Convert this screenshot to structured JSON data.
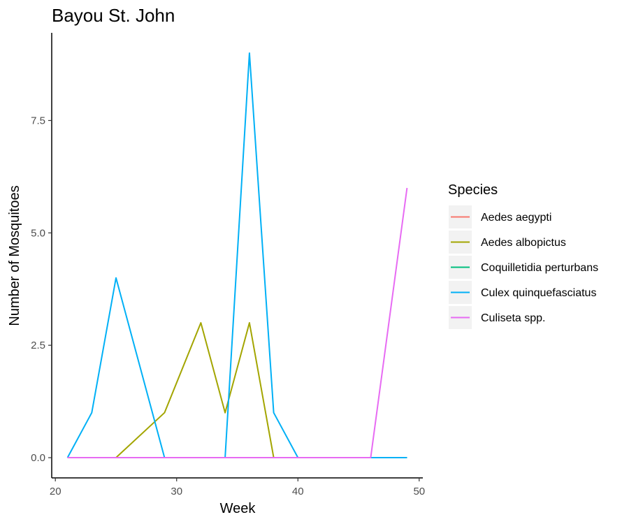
{
  "chart_data": {
    "type": "line",
    "title": "Bayou St. John",
    "xlabel": "Week",
    "ylabel": "Number of Mosquitoes",
    "xlim": [
      19.7,
      50.3
    ],
    "ylim": [
      -0.45,
      9.45
    ],
    "xticks": [
      20,
      30,
      40,
      50
    ],
    "xtick_labels": [
      "20",
      "30",
      "40",
      "50"
    ],
    "yticks": [
      0,
      2.5,
      5,
      7.5
    ],
    "ytick_labels": [
      "0.0",
      "2.5",
      "5.0",
      "7.5"
    ],
    "grid": false,
    "legend": {
      "title": "Species",
      "placement": "right"
    },
    "series": [
      {
        "name": "Aedes aegypti",
        "color": "#F8766D",
        "x": [
          21,
          49
        ],
        "y": [
          0,
          0
        ]
      },
      {
        "name": "Aedes albopictus",
        "color": "#A3A500",
        "x": [
          21,
          23,
          25,
          29,
          32,
          34,
          36,
          38,
          40,
          49
        ],
        "y": [
          0,
          0,
          0,
          1,
          3,
          1,
          3,
          0,
          0,
          0
        ]
      },
      {
        "name": "Coquilletidia perturbans",
        "color": "#00BF7D",
        "x": [
          21,
          49
        ],
        "y": [
          0,
          0
        ]
      },
      {
        "name": "Culex quinquefasciatus",
        "color": "#00B0F6",
        "x": [
          21,
          23,
          25,
          29,
          34,
          36,
          38,
          40,
          46,
          49
        ],
        "y": [
          0,
          1,
          4,
          0,
          0,
          9,
          1,
          0,
          0,
          0
        ]
      },
      {
        "name": "Culiseta spp.",
        "color": "#E76BF3",
        "x": [
          21,
          46,
          49
        ],
        "y": [
          0,
          0,
          6
        ]
      }
    ]
  }
}
